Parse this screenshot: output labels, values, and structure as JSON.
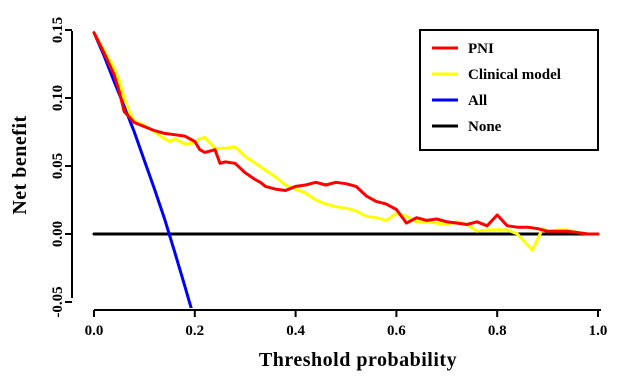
{
  "chart_data": {
    "type": "line",
    "xlabel": "Threshold probability",
    "ylabel": "Net benefit",
    "xlim": [
      0.0,
      1.0
    ],
    "ylim": [
      -0.05,
      0.15
    ],
    "xticks": [
      0.0,
      0.2,
      0.4,
      0.6,
      0.8,
      1.0
    ],
    "xtick_labels": [
      "0.0",
      "0.2",
      "0.4",
      "0.6",
      "0.8",
      "1.0"
    ],
    "yticks": [
      -0.05,
      0.0,
      0.05,
      0.1,
      0.15
    ],
    "ytick_labels": [
      "-0.05",
      "0.00",
      "0.05",
      "0.10",
      "0.15"
    ],
    "grid": false,
    "legend_position": "top-right",
    "series": [
      {
        "name": "PNI",
        "color": "#ff0000",
        "x": [
          0.0,
          0.02,
          0.04,
          0.05,
          0.06,
          0.07,
          0.08,
          0.1,
          0.12,
          0.14,
          0.16,
          0.18,
          0.2,
          0.21,
          0.22,
          0.24,
          0.25,
          0.26,
          0.28,
          0.3,
          0.32,
          0.33,
          0.34,
          0.36,
          0.38,
          0.4,
          0.42,
          0.44,
          0.46,
          0.48,
          0.5,
          0.52,
          0.54,
          0.56,
          0.58,
          0.6,
          0.62,
          0.64,
          0.66,
          0.68,
          0.7,
          0.72,
          0.74,
          0.76,
          0.78,
          0.8,
          0.82,
          0.84,
          0.86,
          0.88,
          0.9,
          0.92,
          0.94,
          0.96,
          0.98,
          1.0
        ],
        "values": [
          0.148,
          0.133,
          0.117,
          0.105,
          0.09,
          0.086,
          0.082,
          0.079,
          0.076,
          0.074,
          0.073,
          0.072,
          0.068,
          0.062,
          0.06,
          0.062,
          0.052,
          0.053,
          0.052,
          0.045,
          0.04,
          0.038,
          0.035,
          0.033,
          0.032,
          0.035,
          0.036,
          0.038,
          0.036,
          0.038,
          0.037,
          0.035,
          0.028,
          0.024,
          0.022,
          0.018,
          0.008,
          0.012,
          0.01,
          0.011,
          0.009,
          0.008,
          0.007,
          0.009,
          0.006,
          0.014,
          0.006,
          0.005,
          0.005,
          0.004,
          0.002,
          0.002,
          0.002,
          0.001,
          0.0,
          0.0
        ]
      },
      {
        "name": "Clinical model",
        "color": "#ffff00",
        "x": [
          0.0,
          0.02,
          0.04,
          0.05,
          0.06,
          0.07,
          0.08,
          0.1,
          0.12,
          0.14,
          0.15,
          0.16,
          0.18,
          0.2,
          0.21,
          0.22,
          0.23,
          0.24,
          0.26,
          0.28,
          0.3,
          0.32,
          0.34,
          0.36,
          0.38,
          0.4,
          0.42,
          0.44,
          0.46,
          0.48,
          0.5,
          0.52,
          0.54,
          0.56,
          0.58,
          0.6,
          0.62,
          0.64,
          0.66,
          0.68,
          0.7,
          0.72,
          0.74,
          0.76,
          0.78,
          0.8,
          0.82,
          0.84,
          0.86,
          0.87,
          0.88,
          0.89,
          0.9,
          0.92,
          0.94,
          0.96,
          0.98,
          1.0
        ],
        "values": [
          0.148,
          0.135,
          0.122,
          0.113,
          0.1,
          0.09,
          0.083,
          0.08,
          0.075,
          0.07,
          0.068,
          0.07,
          0.066,
          0.067,
          0.07,
          0.071,
          0.067,
          0.063,
          0.063,
          0.064,
          0.057,
          0.052,
          0.047,
          0.042,
          0.036,
          0.033,
          0.03,
          0.025,
          0.022,
          0.02,
          0.019,
          0.017,
          0.013,
          0.012,
          0.01,
          0.015,
          0.013,
          0.009,
          0.009,
          0.008,
          0.007,
          0.009,
          0.007,
          0.002,
          0.003,
          0.003,
          0.003,
          0.0,
          -0.008,
          -0.012,
          -0.004,
          0.004,
          0.002,
          0.003,
          0.003,
          0.001,
          0.0,
          0.0
        ]
      },
      {
        "name": "All",
        "color": "#0000ff",
        "x": [
          0.0,
          0.02,
          0.04,
          0.06,
          0.08,
          0.1,
          0.12,
          0.14,
          0.16,
          0.18,
          0.194
        ],
        "values": [
          0.148,
          0.131,
          0.112,
          0.094,
          0.075,
          0.054,
          0.033,
          0.011,
          -0.013,
          -0.038,
          -0.056
        ]
      },
      {
        "name": "None",
        "color": "#000000",
        "x": [
          0.0,
          1.0
        ],
        "values": [
          0.0,
          0.0
        ]
      }
    ]
  }
}
